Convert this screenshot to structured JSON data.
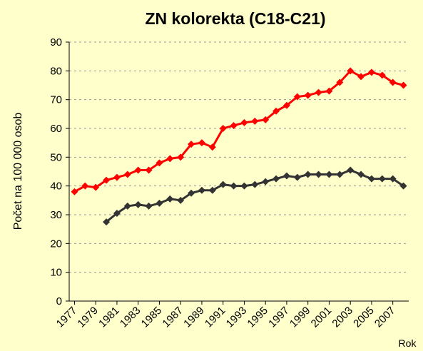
{
  "chart_data": {
    "type": "line",
    "title": "ZN kolorekta (C18-C21)",
    "y_label": "Počet na 100 000 osob",
    "x_label": "Rok",
    "x": [
      1977,
      1978,
      1979,
      1980,
      1981,
      1982,
      1983,
      1984,
      1985,
      1986,
      1987,
      1988,
      1989,
      1990,
      1991,
      1992,
      1993,
      1994,
      1995,
      1996,
      1997,
      1998,
      1999,
      2000,
      2001,
      2002,
      2003,
      2004,
      2005,
      2006,
      2007,
      2008
    ],
    "series": [
      {
        "color": "#ff0000",
        "values": [
          38,
          40,
          39.5,
          42,
          43,
          44,
          45.5,
          45.5,
          48,
          49.5,
          50,
          54.5,
          55,
          53.5,
          60,
          61,
          62,
          62.5,
          63,
          66,
          68,
          71,
          71.5,
          72.5,
          73,
          76,
          80,
          78,
          79.5,
          78.5,
          76,
          75
        ]
      },
      {
        "color": "#333333",
        "values": [
          null,
          null,
          null,
          27.5,
          30.5,
          33,
          33.5,
          33,
          34,
          35.5,
          35,
          37.5,
          38.5,
          38.5,
          40.5,
          40,
          40,
          40.5,
          41.5,
          42.5,
          43.5,
          43,
          44,
          44,
          44,
          44,
          45.5,
          44,
          42.5,
          42.5,
          42.5,
          40
        ]
      }
    ],
    "xlim": [
      1976.5,
      2008.5
    ],
    "xticks": [
      1977,
      1979,
      1981,
      1983,
      1985,
      1987,
      1989,
      1991,
      1993,
      1995,
      1997,
      1999,
      2001,
      2003,
      2005,
      2007
    ],
    "ylim": [
      0,
      90
    ],
    "yticks": [
      0,
      10,
      20,
      30,
      40,
      50,
      60,
      70,
      80,
      90
    ],
    "grid": true
  }
}
